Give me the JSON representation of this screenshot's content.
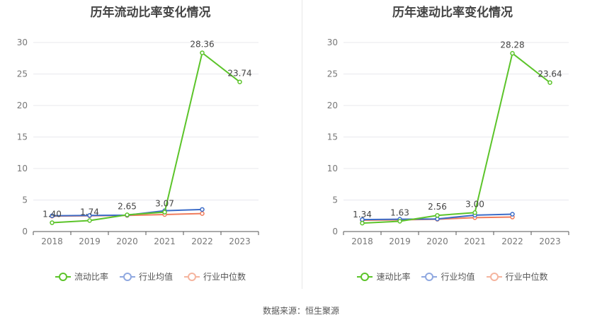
{
  "source_note": "数据来源：恒生聚源",
  "chart_data": [
    {
      "type": "line",
      "title": "历年流动比率变化情况",
      "categories": [
        "2018",
        "2019",
        "2020",
        "2021",
        "2022",
        "2023"
      ],
      "ylim": [
        0,
        30
      ],
      "yticks": [
        0,
        5,
        10,
        15,
        20,
        25,
        30
      ],
      "grid": true,
      "legend_position": "bottom",
      "series": [
        {
          "name": "流动比率",
          "color": "#5cc42a",
          "values": [
            1.4,
            1.74,
            2.65,
            3.07,
            28.36,
            23.74
          ],
          "labels": [
            "1.40",
            "1.74",
            "2.65",
            "3.07",
            "28.36",
            "23.74"
          ]
        },
        {
          "name": "行业均值",
          "color": "#3c6cc8",
          "values": [
            2.5,
            2.55,
            2.6,
            3.3,
            3.5,
            null
          ]
        },
        {
          "name": "行业中位数",
          "color": "#f07c5c",
          "values": [
            2.45,
            2.5,
            2.55,
            2.7,
            2.85,
            null
          ]
        }
      ],
      "legend_colors": [
        "#5cc42a",
        "#8fa8e0",
        "#f5b59f"
      ]
    },
    {
      "type": "line",
      "title": "历年速动比率变化情况",
      "categories": [
        "2018",
        "2019",
        "2020",
        "2021",
        "2022",
        "2023"
      ],
      "ylim": [
        0,
        30
      ],
      "yticks": [
        0,
        5,
        10,
        15,
        20,
        25,
        30
      ],
      "grid": true,
      "legend_position": "bottom",
      "series": [
        {
          "name": "速动比率",
          "color": "#5cc42a",
          "values": [
            1.34,
            1.63,
            2.56,
            3.0,
            28.28,
            23.64
          ],
          "labels": [
            "1.34",
            "1.63",
            "2.56",
            "3.00",
            "28.28",
            "23.64"
          ]
        },
        {
          "name": "行业均值",
          "color": "#3c6cc8",
          "values": [
            1.9,
            1.95,
            2.0,
            2.6,
            2.75,
            null
          ]
        },
        {
          "name": "行业中位数",
          "color": "#f07c5c",
          "values": [
            1.8,
            1.85,
            1.95,
            2.2,
            2.3,
            null
          ]
        }
      ],
      "legend_colors": [
        "#5cc42a",
        "#8fa8e0",
        "#f5b59f"
      ]
    }
  ]
}
